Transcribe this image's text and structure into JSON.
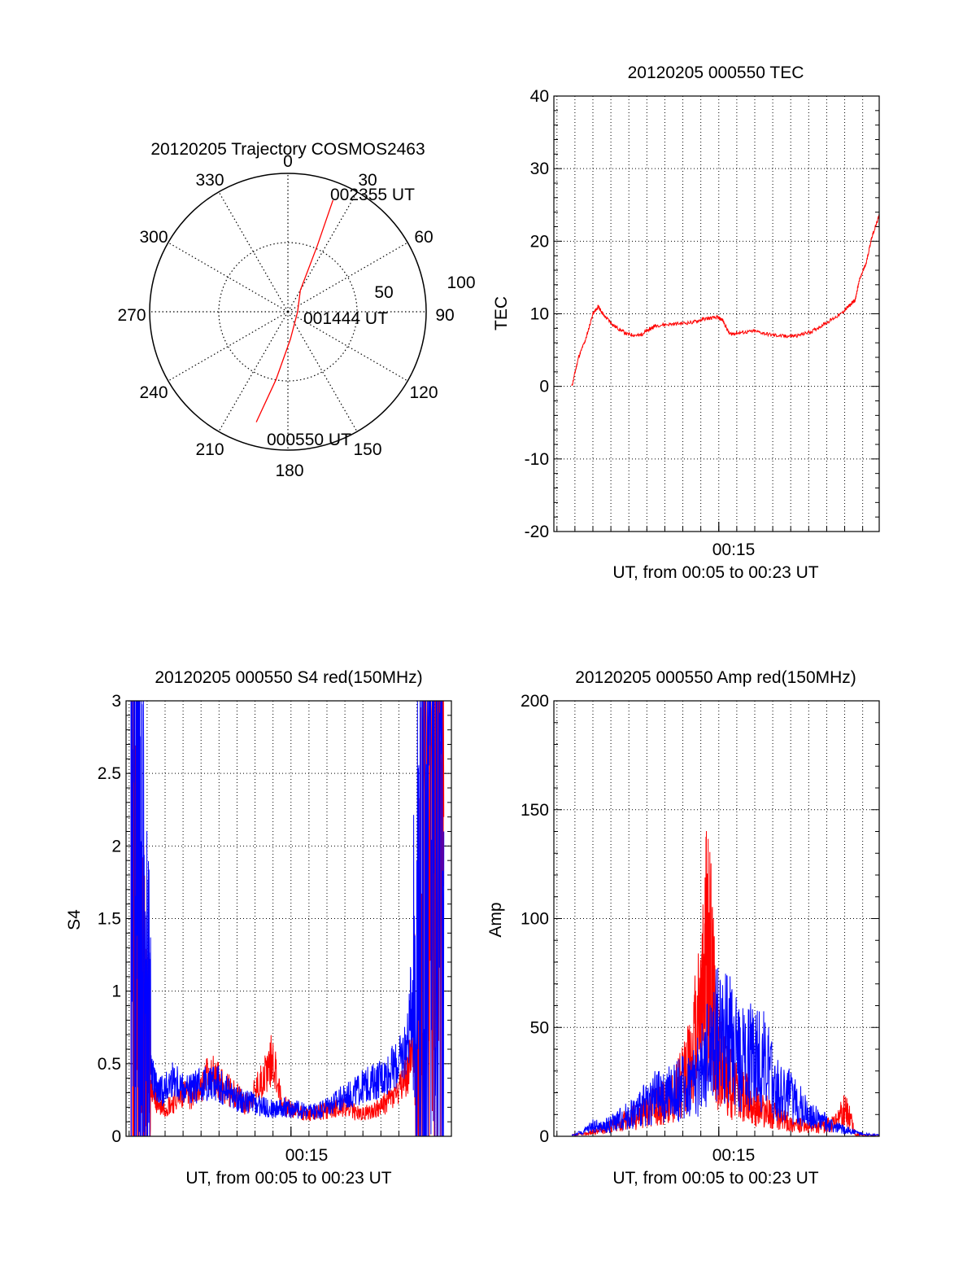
{
  "colors": {
    "red": "#ff0000",
    "blue": "#0000ff",
    "axis": "#000000",
    "grid": "#000000"
  },
  "chart_data": [
    {
      "id": "trajectory",
      "type": "polar",
      "title": "20120205 Trajectory COSMOS2463",
      "azimuth_labels": [
        "0",
        "30",
        "60",
        "90",
        "120",
        "150",
        "180",
        "210",
        "240",
        "270",
        "300",
        "330"
      ],
      "radial_labels": [
        "50",
        "100"
      ],
      "radial_range": [
        0,
        100
      ],
      "grid": true,
      "track": {
        "name": "trajectory",
        "color": "#ff0000",
        "points": [
          {
            "az": 196,
            "zen": 83
          },
          {
            "az": 190,
            "zen": 50
          },
          {
            "az": 175,
            "zen": 20
          },
          {
            "az": 90,
            "zen": 7
          },
          {
            "az": 30,
            "zen": 18
          },
          {
            "az": 24,
            "zen": 52
          },
          {
            "az": 22,
            "zen": 87
          }
        ]
      },
      "annotations": [
        {
          "text": "002355 UT",
          "at": "end"
        },
        {
          "text": "001444 UT",
          "at": "zenith"
        },
        {
          "text": "000550 UT",
          "at": "start"
        }
      ]
    },
    {
      "id": "tec",
      "type": "line",
      "title": "20120205 000550 TEC",
      "xlabel": "UT, from 00:05 to 00:23 UT",
      "ylabel": "TEC",
      "xlim": [
        5.83,
        23.92
      ],
      "ylim": [
        -20,
        40
      ],
      "yticks": [
        -20,
        -10,
        0,
        10,
        20,
        30,
        40
      ],
      "xticklabels": [
        "00:15"
      ],
      "grid": true,
      "series": [
        {
          "color": "#ff0000",
          "x": [
            6.83,
            7.2,
            7.6,
            8.0,
            8.3,
            8.6,
            9.2,
            9.9,
            10.6,
            11.1,
            11.5,
            12.5,
            13.5,
            14.2,
            14.9,
            15.2,
            15.6,
            16.2,
            17.0,
            17.9,
            18.7,
            19.4,
            20.2,
            21.0,
            21.8,
            22.3,
            22.6,
            22.8,
            23.2,
            23.5,
            23.92
          ],
          "y": [
            0.0,
            4.0,
            6.5,
            10.0,
            11.0,
            9.8,
            8.3,
            7.2,
            7.0,
            7.8,
            8.4,
            8.6,
            8.8,
            9.3,
            9.5,
            9.2,
            7.2,
            7.4,
            7.6,
            7.1,
            6.9,
            7.0,
            7.6,
            8.8,
            10.0,
            11.2,
            12.0,
            14.5,
            17.0,
            20.5,
            23.5
          ]
        }
      ]
    },
    {
      "id": "s4",
      "type": "line",
      "title": "20120205 000550 S4 red(150MHz)",
      "xlabel": "UT, from 00:05 to 00:23 UT",
      "ylabel": "S4",
      "xlim": [
        5.83,
        23.92
      ],
      "ylim": [
        0,
        3
      ],
      "yticks": [
        0,
        0.5,
        1,
        1.5,
        2,
        2.5,
        3
      ],
      "xticklabels": [
        "00:15"
      ],
      "grid": true,
      "series": [
        {
          "color": "#ff0000",
          "x": [
            6.1,
            6.4,
            6.7,
            7.0,
            7.3,
            7.6,
            8.0,
            8.5,
            9.0,
            9.5,
            10.0,
            10.5,
            11.0,
            11.5,
            12.0,
            12.5,
            13.0,
            13.5,
            14.0,
            14.5,
            15.0,
            15.5,
            16.0,
            16.5,
            17.0,
            17.5,
            18.0,
            18.5,
            19.0,
            19.5,
            20.0,
            20.5,
            21.0,
            21.5,
            22.0,
            22.5,
            23.0,
            23.5
          ],
          "y": [
            2.2,
            1.2,
            0.9,
            0.6,
            0.3,
            0.22,
            0.2,
            0.24,
            0.3,
            0.28,
            0.34,
            0.45,
            0.38,
            0.32,
            0.28,
            0.22,
            0.3,
            0.42,
            0.55,
            0.22,
            0.18,
            0.17,
            0.15,
            0.16,
            0.18,
            0.2,
            0.2,
            0.17,
            0.15,
            0.18,
            0.2,
            0.26,
            0.3,
            0.45,
            0.8,
            1.8,
            2.4,
            2.2
          ]
        },
        {
          "color": "#0000ff",
          "x": [
            6.1,
            6.4,
            6.7,
            7.0,
            7.3,
            7.6,
            8.0,
            8.5,
            9.0,
            9.5,
            10.0,
            10.5,
            11.0,
            11.5,
            12.0,
            12.5,
            13.0,
            13.5,
            14.0,
            14.5,
            15.0,
            15.5,
            16.0,
            16.5,
            17.0,
            17.5,
            18.0,
            18.5,
            19.0,
            19.5,
            20.0,
            20.5,
            21.0,
            21.5,
            22.0,
            22.5,
            23.0,
            23.5
          ],
          "y": [
            2.7,
            2.1,
            1.6,
            0.9,
            0.4,
            0.3,
            0.32,
            0.4,
            0.33,
            0.32,
            0.36,
            0.38,
            0.36,
            0.3,
            0.26,
            0.24,
            0.22,
            0.2,
            0.19,
            0.2,
            0.19,
            0.18,
            0.17,
            0.18,
            0.21,
            0.24,
            0.27,
            0.3,
            0.34,
            0.37,
            0.4,
            0.45,
            0.5,
            0.65,
            1.4,
            2.5,
            2.3,
            2.1
          ]
        }
      ]
    },
    {
      "id": "amp",
      "type": "line",
      "title": "20120205 000550 Amp red(150MHz)",
      "xlabel": "UT, from 00:05 to 00:23 UT",
      "ylabel": "Amp",
      "xlim": [
        5.83,
        23.92
      ],
      "ylim": [
        0,
        200
      ],
      "yticks": [
        0,
        50,
        100,
        150,
        200
      ],
      "xticklabels": [
        "00:15"
      ],
      "grid": true,
      "series": [
        {
          "color": "#ff0000",
          "x": [
            6.83,
            7.5,
            8.0,
            8.5,
            9.0,
            9.5,
            10.0,
            10.5,
            11.0,
            11.5,
            12.0,
            12.5,
            13.0,
            13.5,
            14.0,
            14.3,
            14.6,
            14.9,
            15.2,
            15.6,
            16.0,
            16.5,
            17.0,
            17.5,
            18.0,
            18.5,
            19.0,
            19.5,
            20.0,
            20.5,
            21.0,
            21.5,
            22.0,
            22.3,
            22.6,
            23.0,
            23.92
          ],
          "y": [
            0.5,
            1,
            2,
            3,
            5,
            6,
            8,
            10,
            12,
            14,
            16,
            20,
            25,
            35,
            60,
            85,
            75,
            40,
            30,
            25,
            20,
            18,
            15,
            12,
            10,
            8,
            6,
            5,
            4,
            4,
            5,
            6,
            12,
            8,
            1,
            0.5,
            0.5
          ]
        },
        {
          "color": "#0000ff",
          "x": [
            6.83,
            7.5,
            8.0,
            8.5,
            9.0,
            9.5,
            10.0,
            10.5,
            11.0,
            11.5,
            12.0,
            12.5,
            13.0,
            13.5,
            14.0,
            14.5,
            15.0,
            15.5,
            16.0,
            16.5,
            17.0,
            17.5,
            18.0,
            18.5,
            19.0,
            19.5,
            20.0,
            20.5,
            21.0,
            21.5,
            22.0,
            22.5,
            23.0,
            23.92
          ],
          "y": [
            0.5,
            2,
            5,
            4,
            6,
            8,
            10,
            12,
            15,
            18,
            18,
            20,
            22,
            25,
            30,
            40,
            50,
            45,
            38,
            35,
            40,
            35,
            25,
            20,
            18,
            15,
            10,
            8,
            6,
            4,
            3,
            2,
            1,
            0.5
          ]
        }
      ]
    }
  ]
}
